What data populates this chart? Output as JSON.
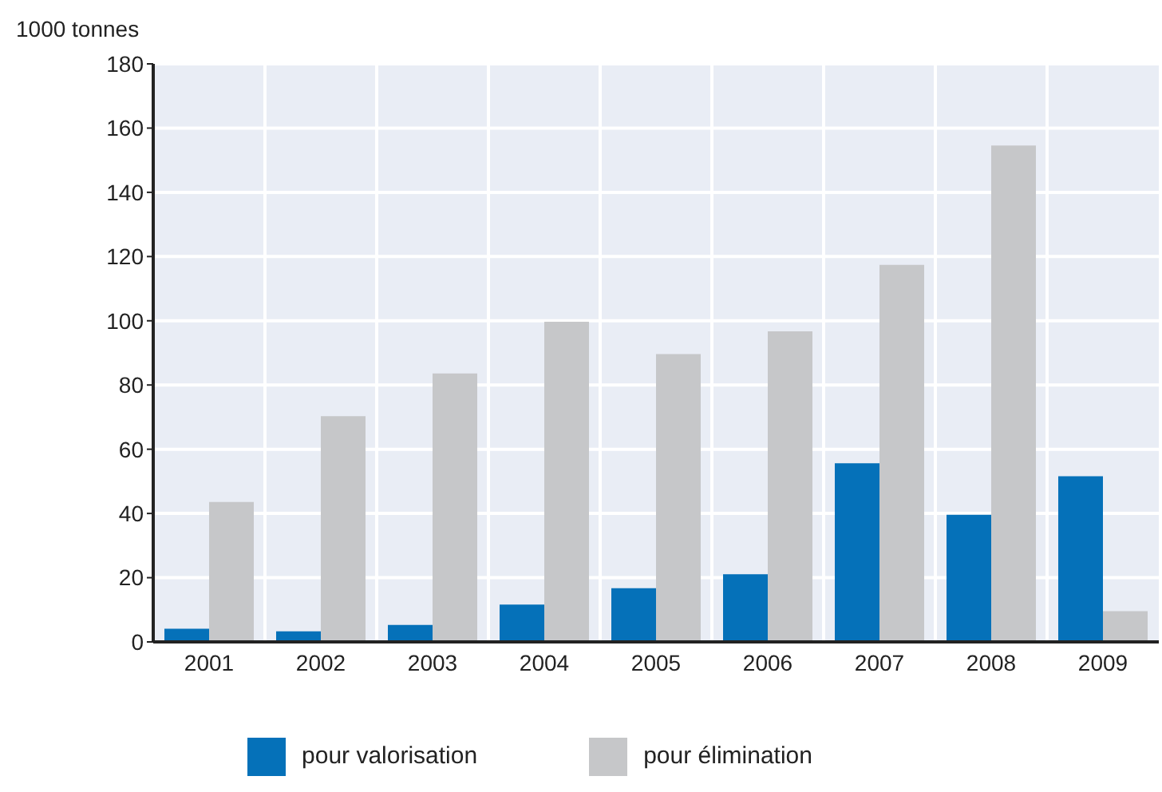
{
  "chart_data": {
    "type": "bar",
    "ylabel": "1000 tonnes",
    "categories": [
      "2001",
      "2002",
      "2003",
      "2004",
      "2005",
      "2006",
      "2007",
      "2008",
      "2009"
    ],
    "series": [
      {
        "name": "pour  valorisation",
        "color": "#0571b9",
        "values": [
          4.1,
          3.3,
          5.3,
          11.6,
          16.7,
          21.1,
          55.6,
          39.6,
          51.6
        ]
      },
      {
        "name": "pour élimination",
        "color": "#c6c7c9",
        "values": [
          43.6,
          70.3,
          83.6,
          99.7,
          89.6,
          96.7,
          117.4,
          154.6,
          9.6
        ]
      }
    ],
    "ylim": [
      0,
      180
    ],
    "yticks": [
      0,
      20,
      40,
      60,
      80,
      100,
      120,
      140,
      160,
      180
    ],
    "grid": true,
    "legend": "bottom"
  }
}
